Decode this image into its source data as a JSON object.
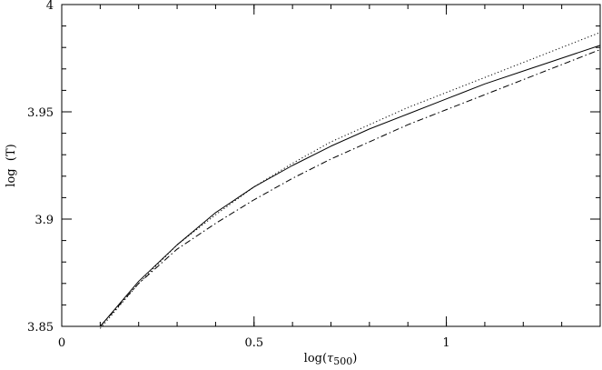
{
  "chart_data": {
    "type": "line",
    "title": "",
    "xlabel": "log(τ500)",
    "xlabel_parts": {
      "prefix": "log(",
      "symbol": "τ",
      "subscript": "500",
      "suffix": ")"
    },
    "ylabel": "log  (T)",
    "xlim": [
      0,
      1.4
    ],
    "ylim": [
      3.85,
      4.0
    ],
    "x_ticks": [
      0,
      0.5,
      1
    ],
    "x_tick_labels": [
      "0",
      "0.5",
      "1"
    ],
    "y_ticks": [
      3.85,
      3.9,
      3.95,
      4.0
    ],
    "y_tick_labels": [
      "3.85",
      "3.9",
      "3.95",
      "4"
    ],
    "x_minor_step": 0.1,
    "y_minor_step": 0.01,
    "grid": false,
    "legend": "none",
    "series": [
      {
        "style": "solid",
        "color": "#000000",
        "x": [
          0.1,
          0.2,
          0.3,
          0.4,
          0.5,
          0.6,
          0.7,
          0.8,
          0.9,
          1.0,
          1.1,
          1.2,
          1.3,
          1.4
        ],
        "y": [
          3.85,
          3.871,
          3.888,
          3.903,
          3.915,
          3.925,
          3.934,
          3.942,
          3.949,
          3.956,
          3.963,
          3.969,
          3.975,
          3.981
        ]
      },
      {
        "style": "dotted",
        "color": "#000000",
        "x": [
          0.1,
          0.2,
          0.3,
          0.4,
          0.5,
          0.6,
          0.7,
          0.8,
          0.9,
          1.0,
          1.1,
          1.2,
          1.3,
          1.4
        ],
        "y": [
          3.849,
          3.87,
          3.888,
          3.902,
          3.915,
          3.926,
          3.936,
          3.944,
          3.952,
          3.959,
          3.966,
          3.973,
          3.98,
          3.987
        ]
      },
      {
        "style": "dashdot",
        "color": "#000000",
        "x": [
          0.1,
          0.2,
          0.3,
          0.4,
          0.5,
          0.6,
          0.7,
          0.8,
          0.9,
          1.0,
          1.1,
          1.2,
          1.3,
          1.4
        ],
        "y": [
          3.85,
          3.87,
          3.886,
          3.898,
          3.909,
          3.919,
          3.928,
          3.936,
          3.944,
          3.951,
          3.958,
          3.965,
          3.972,
          3.979
        ]
      }
    ]
  }
}
